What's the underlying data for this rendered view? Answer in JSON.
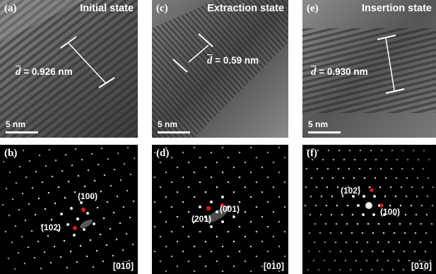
{
  "figure": {
    "top_row": [
      {
        "label": "(a)",
        "title": "Initial state",
        "d_symbol": "d",
        "d_text": " = 0.926 nm",
        "scale": "5 nm"
      },
      {
        "label": "(c)",
        "title": "Extraction state",
        "d_symbol": "d",
        "d_text": " = 0.59 nm",
        "scale": "5 nm"
      },
      {
        "label": "(e)",
        "title": "Insertion state",
        "d_symbol": "d",
        "d_text": " = 0.930 nm",
        "scale": "5 nm"
      }
    ],
    "bottom_row": [
      {
        "label": "(b)",
        "spots": [
          "(100)",
          "(102)"
        ],
        "zone_axis": "[01̅0]"
      },
      {
        "label": "(d)",
        "spots": [
          "(001)",
          "(201)"
        ],
        "zone_axis": "[010]"
      },
      {
        "label": "(f)",
        "spots": [
          "(102)",
          "(100)"
        ],
        "zone_axis": "[01̅0]"
      }
    ]
  },
  "colors": {
    "tem_background": "#6b6b6b",
    "diffraction_background": "#000000",
    "highlight_spot": "#d01a1a"
  }
}
